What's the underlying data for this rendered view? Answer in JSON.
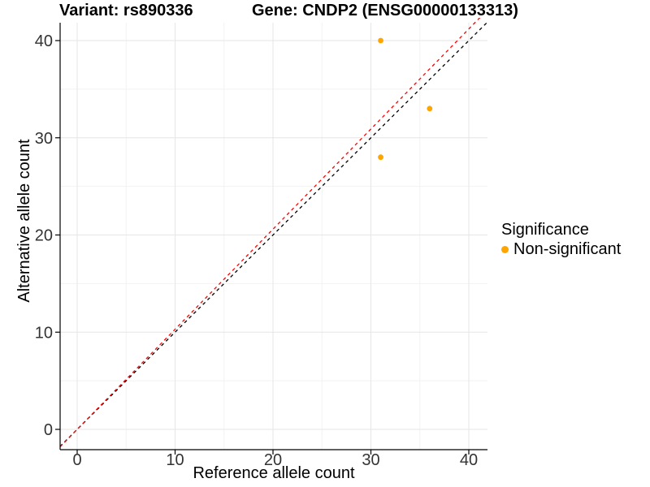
{
  "chart_data": {
    "type": "scatter",
    "title_left": "Variant: rs890336",
    "title_right": "Gene: CNDP2 (ENSG00000133313)",
    "xlabel": "Reference allele count",
    "ylabel": "Alternative allele count",
    "xlim": [
      -1.7,
      41.9
    ],
    "ylim": [
      -2.1,
      41.8
    ],
    "x_ticks": [
      0,
      10,
      20,
      30,
      40
    ],
    "y_ticks": [
      0,
      10,
      20,
      30,
      40
    ],
    "grid": "major+minor",
    "legend_position": "right",
    "points": [
      {
        "x": 31,
        "y": 40,
        "series": "Non-significant"
      },
      {
        "x": 36,
        "y": 33,
        "series": "Non-significant"
      },
      {
        "x": 31,
        "y": 28,
        "series": "Non-significant"
      }
    ],
    "point_color": "#FFA500",
    "reference_lines": [
      {
        "name": "identity",
        "slope": 1.0,
        "intercept": 0,
        "color": "#000000",
        "linetype": "dashed"
      },
      {
        "name": "fit",
        "slope": 1.03,
        "intercept": 0,
        "color": "#FF0000",
        "linetype": "dashed"
      }
    ],
    "legend": {
      "title": "Significance",
      "items": [
        {
          "label": "Non-significant",
          "color": "#FFA500"
        }
      ]
    },
    "colors": {
      "major_grid": "#E6E6E6",
      "minor_grid": "#F2F2F2",
      "axis": "#000000",
      "tick_text": "#333333"
    }
  }
}
